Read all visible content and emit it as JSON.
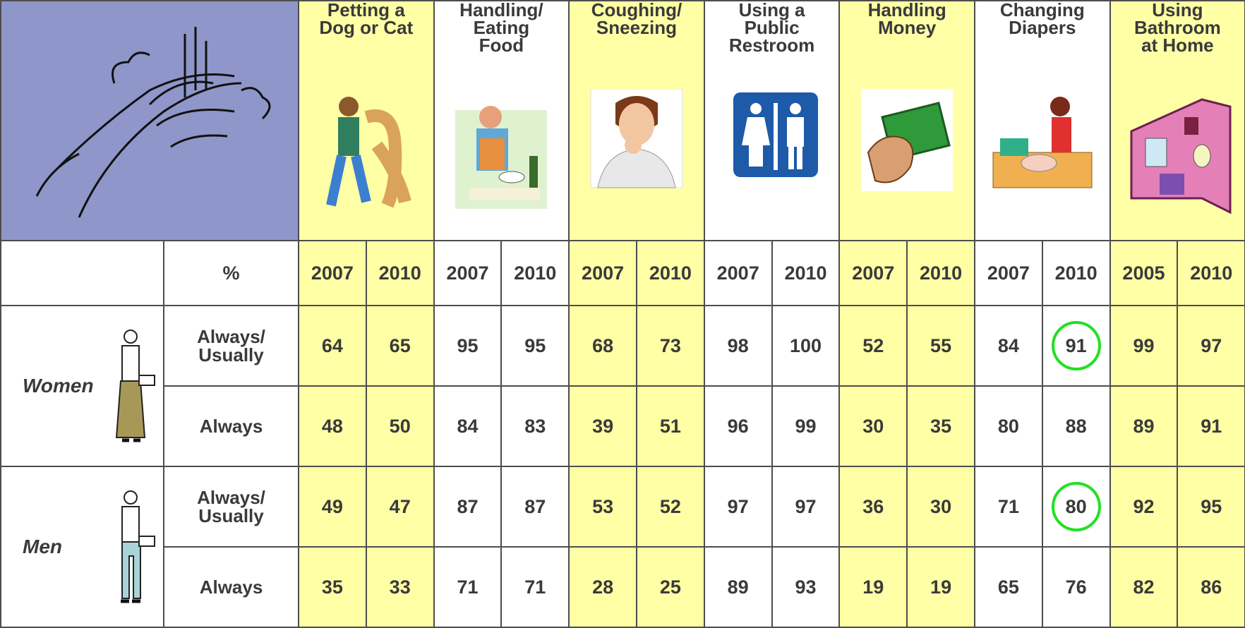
{
  "header": {
    "activities": [
      "Petting a\nDog or Cat",
      "Handling/\nEating\nFood",
      "Coughing/\nSneezing",
      "Using a\nPublic\nRestroom",
      "Handling\nMoney",
      "Changing\nDiapers",
      "Using\nBathroom\nat Home"
    ],
    "percent_label": "%",
    "years": [
      2007,
      2010,
      2007,
      2010,
      2007,
      2010,
      2007,
      2010,
      2007,
      2010,
      2007,
      2010,
      2005,
      2010
    ]
  },
  "groups": [
    {
      "label": "Women",
      "rows": [
        {
          "label": "Always/\nUsually",
          "values": [
            64,
            65,
            95,
            95,
            68,
            73,
            98,
            100,
            52,
            55,
            84,
            91,
            99,
            97
          ]
        },
        {
          "label": "Always",
          "values": [
            48,
            50,
            84,
            83,
            39,
            51,
            96,
            99,
            30,
            35,
            80,
            88,
            89,
            91
          ]
        }
      ]
    },
    {
      "label": "Men",
      "rows": [
        {
          "label": "Always/\nUsually",
          "values": [
            49,
            47,
            87,
            87,
            53,
            52,
            97,
            97,
            36,
            30,
            71,
            80,
            92,
            95
          ]
        },
        {
          "label": "Always",
          "values": [
            35,
            33,
            71,
            71,
            28,
            25,
            89,
            93,
            19,
            19,
            65,
            76,
            82,
            86
          ]
        }
      ]
    }
  ]
}
